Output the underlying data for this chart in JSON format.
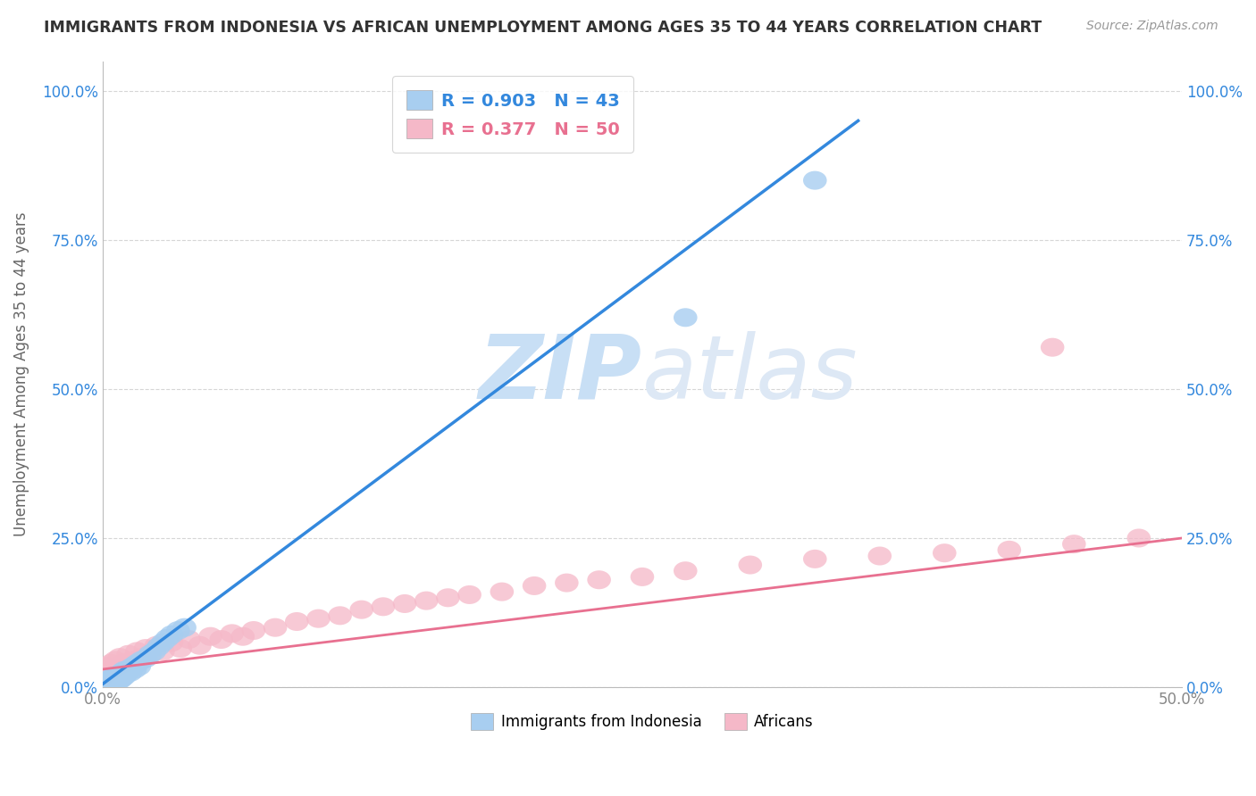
{
  "title": "IMMIGRANTS FROM INDONESIA VS AFRICAN UNEMPLOYMENT AMONG AGES 35 TO 44 YEARS CORRELATION CHART",
  "source": "Source: ZipAtlas.com",
  "ylabel": "Unemployment Among Ages 35 to 44 years",
  "xlim": [
    0,
    0.5
  ],
  "ylim": [
    0,
    1.05
  ],
  "indonesia_color": "#a8cef0",
  "africa_color": "#f5b8c8",
  "indonesia_line_color": "#3388dd",
  "africa_line_color": "#e87090",
  "background_color": "#ffffff",
  "grid_color": "#cccccc",
  "indonesia_r": "0.903",
  "indonesia_n": "43",
  "africa_r": "0.377",
  "africa_n": "50",
  "legend_text_blue": "#3388dd",
  "legend_text_pink": "#e87090",
  "tick_color_blue": "#3388dd",
  "axis_tick_color": "#888888",
  "indonesia_x": [
    0.001,
    0.001,
    0.002,
    0.002,
    0.002,
    0.003,
    0.003,
    0.003,
    0.004,
    0.004,
    0.004,
    0.005,
    0.005,
    0.005,
    0.006,
    0.006,
    0.007,
    0.007,
    0.008,
    0.008,
    0.009,
    0.009,
    0.01,
    0.01,
    0.011,
    0.012,
    0.013,
    0.014,
    0.015,
    0.016,
    0.017,
    0.018,
    0.02,
    0.022,
    0.024,
    0.026,
    0.028,
    0.03,
    0.032,
    0.035,
    0.038,
    0.27,
    0.33
  ],
  "indonesia_y": [
    0.0,
    0.005,
    0.0,
    0.003,
    0.01,
    0.002,
    0.005,
    0.012,
    0.003,
    0.008,
    0.015,
    0.005,
    0.01,
    0.018,
    0.008,
    0.015,
    0.01,
    0.02,
    0.012,
    0.022,
    0.015,
    0.025,
    0.018,
    0.028,
    0.022,
    0.03,
    0.025,
    0.035,
    0.03,
    0.04,
    0.035,
    0.045,
    0.048,
    0.055,
    0.06,
    0.068,
    0.075,
    0.082,
    0.088,
    0.095,
    0.1,
    0.62,
    0.85
  ],
  "africa_x": [
    0.001,
    0.002,
    0.003,
    0.004,
    0.005,
    0.006,
    0.007,
    0.008,
    0.01,
    0.012,
    0.014,
    0.016,
    0.018,
    0.02,
    0.022,
    0.025,
    0.028,
    0.032,
    0.036,
    0.04,
    0.045,
    0.05,
    0.055,
    0.06,
    0.065,
    0.07,
    0.08,
    0.09,
    0.1,
    0.11,
    0.12,
    0.13,
    0.14,
    0.15,
    0.16,
    0.17,
    0.185,
    0.2,
    0.215,
    0.23,
    0.25,
    0.27,
    0.3,
    0.33,
    0.36,
    0.39,
    0.42,
    0.45,
    0.48,
    0.44
  ],
  "africa_y": [
    0.02,
    0.035,
    0.025,
    0.04,
    0.03,
    0.045,
    0.035,
    0.05,
    0.04,
    0.055,
    0.045,
    0.06,
    0.05,
    0.065,
    0.055,
    0.07,
    0.06,
    0.075,
    0.065,
    0.08,
    0.07,
    0.085,
    0.08,
    0.09,
    0.085,
    0.095,
    0.1,
    0.11,
    0.115,
    0.12,
    0.13,
    0.135,
    0.14,
    0.145,
    0.15,
    0.155,
    0.16,
    0.17,
    0.175,
    0.18,
    0.185,
    0.195,
    0.205,
    0.215,
    0.22,
    0.225,
    0.23,
    0.24,
    0.25,
    0.57
  ],
  "blue_line_x": [
    0.0,
    0.35
  ],
  "blue_line_y": [
    0.005,
    0.95
  ],
  "pink_line_x": [
    0.0,
    0.5
  ],
  "pink_line_y": [
    0.03,
    0.25
  ]
}
